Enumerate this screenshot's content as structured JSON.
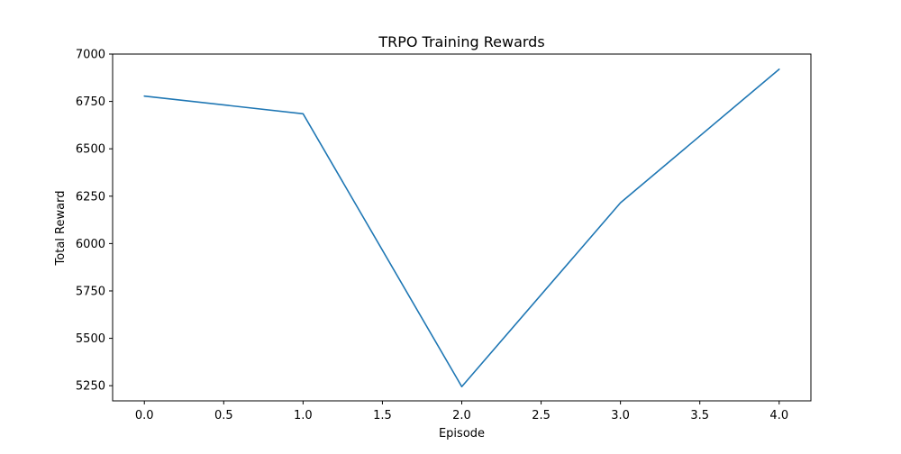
{
  "chart_data": {
    "type": "line",
    "title": "TRPO Training Rewards",
    "xlabel": "Episode",
    "ylabel": "Total Reward",
    "x": [
      0,
      1,
      2,
      3,
      4
    ],
    "series": [
      {
        "values": [
          6778,
          6685,
          5245,
          6215,
          6920
        ],
        "color": "#1f77b4"
      }
    ],
    "xlim": [
      -0.2,
      4.2
    ],
    "ylim": [
      5170,
      7000
    ],
    "xticks": [
      0.0,
      0.5,
      1.0,
      1.5,
      2.0,
      2.5,
      3.0,
      3.5,
      4.0
    ],
    "xtick_labels": [
      "0.0",
      "0.5",
      "1.0",
      "1.5",
      "2.0",
      "2.5",
      "3.0",
      "3.5",
      "4.0"
    ],
    "yticks": [
      5250,
      5500,
      5750,
      6000,
      6250,
      6500,
      6750,
      7000
    ],
    "ytick_labels": [
      "5250",
      "5500",
      "5750",
      "6000",
      "6250",
      "6500",
      "6750",
      "7000"
    ],
    "grid": false,
    "legend": "none"
  }
}
